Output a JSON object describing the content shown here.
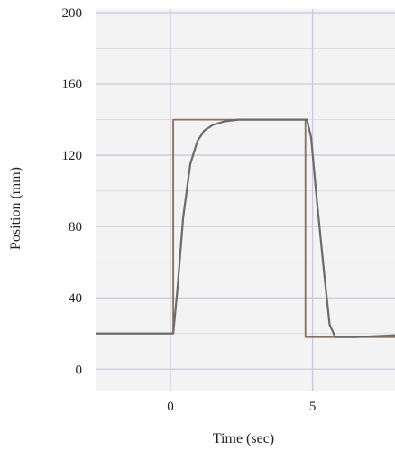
{
  "chart_data": {
    "type": "line",
    "title": "",
    "xlabel": "Time (sec)",
    "ylabel": "Position (mm)",
    "xlim": [
      -2.6,
      7.9
    ],
    "ylim": [
      -12,
      202
    ],
    "x_ticks": [
      0,
      5
    ],
    "x_tick_labels": [
      "0",
      "5"
    ],
    "y_ticks": [
      0,
      40,
      80,
      120,
      160,
      200
    ],
    "y_tick_labels": [
      "0",
      "40",
      "80",
      "120",
      "160",
      "200"
    ],
    "grid": true,
    "legend": "none",
    "colors": {
      "plot_background": "#f3f3f3",
      "grid_major": "#c9c9dc",
      "grid_minor": "#dcdce8",
      "series_command": "#8b6e5d",
      "series_response": "#6a6a6a"
    },
    "series": [
      {
        "x": [
          -2.6,
          0.1,
          0.1,
          4.75,
          4.75,
          7.9
        ],
        "y": [
          20,
          20,
          140,
          140,
          18,
          18
        ]
      },
      {
        "x": [
          -2.6,
          0.1,
          0.25,
          0.45,
          0.7,
          0.95,
          1.2,
          1.5,
          1.9,
          2.4,
          3.0,
          4.0,
          4.8,
          4.95,
          5.15,
          5.4,
          5.6,
          5.8,
          6.5,
          7.9
        ],
        "y": [
          20,
          20,
          45,
          85,
          115,
          128,
          134,
          137,
          139,
          140,
          140,
          140,
          140,
          130,
          95,
          55,
          25,
          18,
          18,
          19
        ]
      }
    ]
  }
}
